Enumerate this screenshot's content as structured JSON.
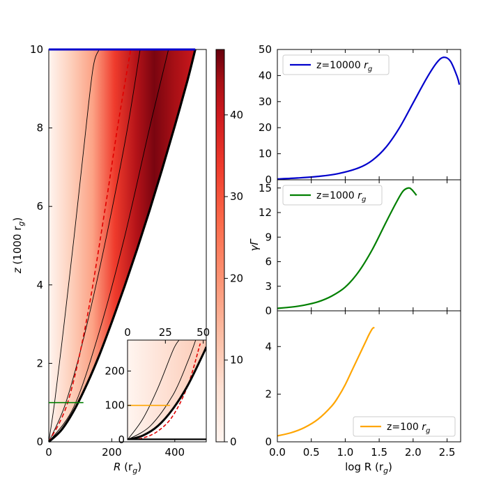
{
  "chart_data": [
    {
      "id": "main-map",
      "type": "heatmap",
      "xlabel": "R",
      "xlabel_unit": "(r",
      "xlabel_sub": "g",
      "xlabel_close": ")",
      "ylabel": "z",
      "ylabel_unit": "(1000 r",
      "ylabel_sub": "g",
      "ylabel_close": ")",
      "xlim": [
        0,
        500
      ],
      "ylim": [
        0,
        10
      ],
      "xticks": [
        "0",
        "200",
        "400"
      ],
      "xtick_values": [
        0,
        200,
        400
      ],
      "yticks": [
        "0",
        "2",
        "4",
        "6",
        "8",
        "10"
      ],
      "ytick_values": [
        0,
        2,
        4,
        6,
        8,
        10
      ],
      "jet_boundary_R": [
        0,
        40,
        80,
        120,
        160,
        200,
        240,
        280,
        320,
        360,
        400,
        440,
        465
      ],
      "jet_boundary_z": [
        0,
        0.3,
        0.8,
        1.45,
        2.2,
        3.05,
        3.95,
        4.9,
        5.9,
        6.95,
        8.05,
        9.2,
        10
      ],
      "streamlines": [
        {
          "name": "streamline-1",
          "R": [
            0,
            20,
            50,
            80,
            110,
            140,
            160
          ],
          "z": [
            0,
            1.1,
            3.1,
            5.2,
            7.4,
            9.5,
            10
          ]
        },
        {
          "name": "streamline-2",
          "R": [
            0,
            50,
            100,
            150,
            200,
            250,
            290
          ],
          "z": [
            0,
            0.9,
            2.3,
            4.0,
            5.9,
            8.0,
            10
          ]
        },
        {
          "name": "streamline-3",
          "R": [
            0,
            80,
            160,
            240,
            320,
            380
          ],
          "z": [
            0,
            0.9,
            2.8,
            5.2,
            8.0,
            10
          ]
        }
      ],
      "fast_surface_R": [
        0,
        60,
        120,
        180,
        220,
        260
      ],
      "fast_surface_z": [
        0,
        1.0,
        3.1,
        6.0,
        8.1,
        10
      ],
      "horizontal_cuts": [
        {
          "name": "z=10000",
          "z": 10,
          "R": [
            0,
            465
          ],
          "color": "#0000cc"
        },
        {
          "name": "z=1000",
          "z": 1,
          "R": [
            0,
            110
          ],
          "color": "#007f00"
        }
      ]
    },
    {
      "id": "colorbar",
      "type": "colorbar",
      "range": [
        0,
        48
      ],
      "ticks": [
        "0",
        "10",
        "20",
        "30",
        "40"
      ],
      "tick_values": [
        0,
        10,
        20,
        30,
        40
      ],
      "colors": [
        "#fff5f0",
        "#fdd0bc",
        "#fc9272",
        "#fb6a4a",
        "#ef3b2c",
        "#cb181d",
        "#a50f15",
        "#67000d"
      ]
    },
    {
      "id": "inset",
      "type": "heatmap",
      "xlim": [
        0,
        52
      ],
      "ylim": [
        0,
        290
      ],
      "xticks": [
        "0",
        "25",
        "50"
      ],
      "xtick_values": [
        0,
        25,
        50
      ],
      "yticks": [
        "0",
        "100",
        "200"
      ],
      "ytick_values": [
        0,
        100,
        200
      ],
      "jet_boundary_R": [
        0,
        10,
        20,
        30,
        40,
        50,
        52
      ],
      "jet_boundary_z": [
        0,
        12,
        40,
        90,
        160,
        250,
        270
      ],
      "streamlines": [
        {
          "name": "inset-streamline-1",
          "R": [
            0,
            10,
            20,
            30,
            34
          ],
          "z": [
            0,
            60,
            150,
            260,
            290
          ]
        },
        {
          "name": "inset-streamline-2",
          "R": [
            0,
            15,
            30,
            40,
            45
          ],
          "z": [
            0,
            40,
            130,
            230,
            290
          ]
        }
      ],
      "fast_surface_R": [
        0,
        10,
        20,
        30,
        40,
        48
      ],
      "fast_surface_z": [
        0,
        5,
        25,
        70,
        160,
        280
      ],
      "horizontal_cut": {
        "name": "z=100",
        "z": 100,
        "R": [
          0,
          28
        ],
        "color": "#ffa500"
      }
    },
    {
      "id": "panel-top",
      "type": "line",
      "xlim": [
        0,
        2.7
      ],
      "ylim": [
        0,
        50
      ],
      "yticks": [
        "0",
        "10",
        "20",
        "30",
        "40",
        "50"
      ],
      "ytick_values": [
        0,
        10,
        20,
        30,
        40,
        50
      ],
      "legend": "top-left",
      "series": [
        {
          "name": "z=10000 ",
          "sub": "r",
          "subsub": "g",
          "color": "#0000cc",
          "x": [
            0,
            0.3,
            0.6,
            0.9,
            1.2,
            1.4,
            1.6,
            1.8,
            2.0,
            2.2,
            2.35,
            2.45,
            2.55,
            2.65,
            2.68
          ],
          "y": [
            0.3,
            0.7,
            1.3,
            2.4,
            4.6,
            7.5,
            12.5,
            20,
            29.5,
            39,
            45,
            47,
            45.5,
            39.5,
            36.5
          ]
        }
      ]
    },
    {
      "id": "panel-mid",
      "type": "line",
      "xlim": [
        0,
        2.7
      ],
      "ylim": [
        0,
        16
      ],
      "yticks": [
        "0",
        "3",
        "6",
        "9",
        "12",
        "15"
      ],
      "ytick_values": [
        0,
        3,
        6,
        9,
        12,
        15
      ],
      "ylabel": "γΓ",
      "legend": "top-left",
      "series": [
        {
          "name": "z=1000 ",
          "sub": "r",
          "subsub": "g",
          "color": "#007f00",
          "x": [
            0,
            0.2,
            0.4,
            0.6,
            0.8,
            1.0,
            1.2,
            1.4,
            1.6,
            1.75,
            1.85,
            1.93,
            1.98,
            2.05
          ],
          "y": [
            0.3,
            0.45,
            0.7,
            1.1,
            1.8,
            2.9,
            4.8,
            7.5,
            10.8,
            13.2,
            14.6,
            15.0,
            14.8,
            14.1
          ]
        }
      ]
    },
    {
      "id": "panel-bot",
      "type": "line",
      "xlim": [
        0,
        2.7
      ],
      "ylim": [
        0,
        5.5
      ],
      "xticks": [
        "0.0",
        "0.5",
        "1.0",
        "1.5",
        "2.0",
        "2.5"
      ],
      "xtick_values": [
        0,
        0.5,
        1.0,
        1.5,
        2.0,
        2.5
      ],
      "yticks": [
        "0",
        "2",
        "4"
      ],
      "ytick_values": [
        0,
        2,
        4
      ],
      "xlabel": "log R ",
      "xlabel_unit": "(r",
      "xlabel_sub": "g",
      "xlabel_close": ")",
      "legend": "bottom-right",
      "series": [
        {
          "name": "z=100 ",
          "sub": "r",
          "subsub": "g",
          "color": "#ffa500",
          "x": [
            0,
            0.2,
            0.4,
            0.6,
            0.8,
            0.9,
            1.0,
            1.1,
            1.2,
            1.3,
            1.35,
            1.4,
            1.43
          ],
          "y": [
            0.25,
            0.38,
            0.6,
            0.95,
            1.5,
            1.9,
            2.4,
            3.0,
            3.6,
            4.2,
            4.5,
            4.75,
            4.8
          ]
        }
      ]
    }
  ]
}
